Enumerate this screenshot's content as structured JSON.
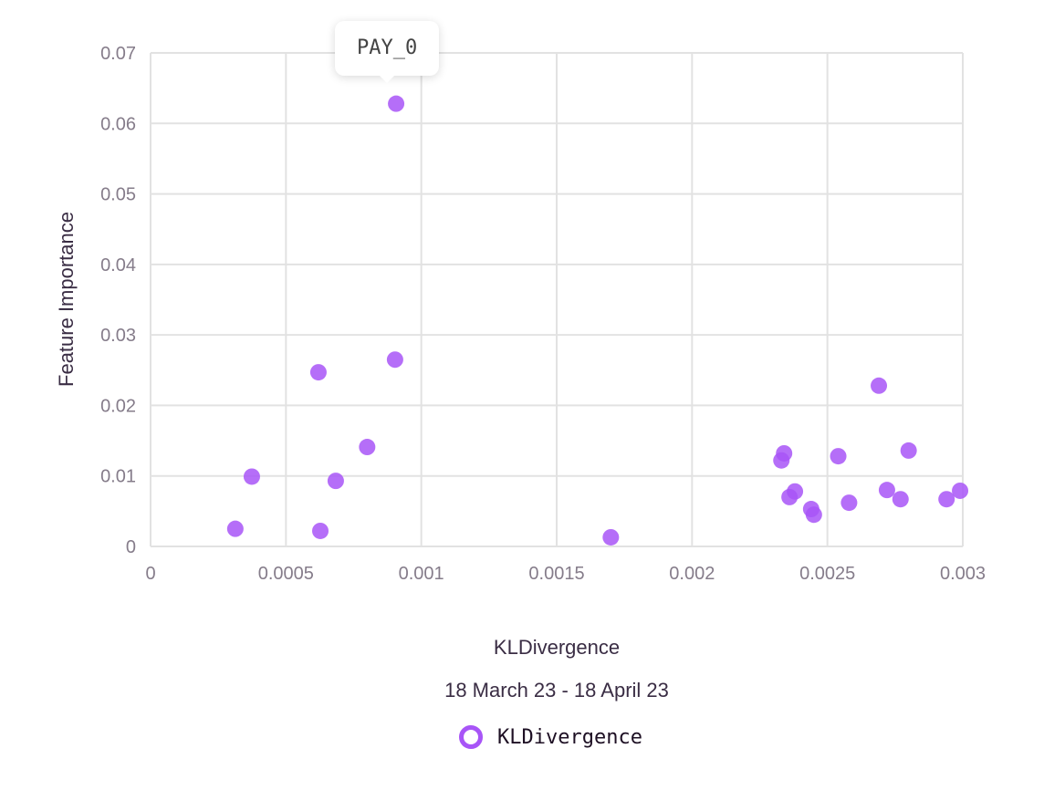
{
  "chart_data": {
    "type": "scatter",
    "xlabel": "KLDivergence",
    "ylabel": "Feature Importance",
    "subtitle": "18 March 23 - 18 April 23",
    "xlim": [
      0,
      0.003
    ],
    "ylim": [
      0,
      0.07
    ],
    "grid": true,
    "legend_position": "bottom",
    "x_ticks": [
      "0",
      "0.0005",
      "0.001",
      "0.0015",
      "0.002",
      "0.0025",
      "0.003"
    ],
    "x_tick_values": [
      0,
      0.0005,
      0.001,
      0.0015,
      0.002,
      0.0025,
      0.003
    ],
    "y_ticks": [
      "0",
      "0.01",
      "0.02",
      "0.03",
      "0.04",
      "0.05",
      "0.06",
      "0.07"
    ],
    "y_tick_values": [
      0,
      0.01,
      0.02,
      0.03,
      0.04,
      0.05,
      0.06,
      0.07
    ],
    "series": [
      {
        "name": "KLDivergence",
        "color": "#a855f7",
        "points": [
          {
            "x": 0.000907,
            "y": 0.0628,
            "label": "PAY_0"
          },
          {
            "x": 0.000903,
            "y": 0.0265
          },
          {
            "x": 0.00062,
            "y": 0.0247
          },
          {
            "x": 0.0008,
            "y": 0.0141
          },
          {
            "x": 0.000374,
            "y": 0.0099
          },
          {
            "x": 0.000684,
            "y": 0.0093
          },
          {
            "x": 0.000313,
            "y": 0.0025
          },
          {
            "x": 0.000627,
            "y": 0.0022
          },
          {
            "x": 0.0017,
            "y": 0.0013
          },
          {
            "x": 0.00269,
            "y": 0.0228
          },
          {
            "x": 0.0028,
            "y": 0.0136
          },
          {
            "x": 0.00234,
            "y": 0.0132
          },
          {
            "x": 0.00254,
            "y": 0.0128
          },
          {
            "x": 0.00233,
            "y": 0.0122
          },
          {
            "x": 0.00272,
            "y": 0.008
          },
          {
            "x": 0.00299,
            "y": 0.0079
          },
          {
            "x": 0.00238,
            "y": 0.0078
          },
          {
            "x": 0.00236,
            "y": 0.007
          },
          {
            "x": 0.00277,
            "y": 0.0067
          },
          {
            "x": 0.00294,
            "y": 0.0067
          },
          {
            "x": 0.00258,
            "y": 0.0062
          },
          {
            "x": 0.00244,
            "y": 0.0053
          },
          {
            "x": 0.00245,
            "y": 0.0045
          }
        ]
      }
    ],
    "tooltip": {
      "text": "PAY_0"
    }
  }
}
